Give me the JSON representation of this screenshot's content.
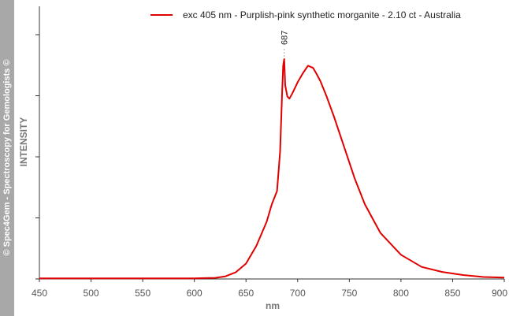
{
  "watermark": "© Spec4Gem - Spectroscopy for Gemologists ©",
  "chart_data": {
    "type": "line",
    "title": "",
    "xlabel": "nm",
    "ylabel": "INTENSITY",
    "xlim": [
      450,
      900
    ],
    "ylim": [
      0,
      100
    ],
    "xticks": [
      450,
      500,
      550,
      600,
      650,
      700,
      750,
      800,
      850,
      900
    ],
    "grid": false,
    "legend_position": "top-right",
    "annotations": [
      {
        "x": 687,
        "text": "687"
      }
    ],
    "series": [
      {
        "name": "exc 405 nm - Purplish-pink synthetic morganite - 2.10 ct - Australia",
        "color": "#e00000",
        "x": [
          450,
          500,
          550,
          600,
          620,
          630,
          640,
          650,
          660,
          670,
          675,
          680,
          683,
          685,
          686,
          687,
          688,
          690,
          692,
          695,
          700,
          705,
          710,
          715,
          718,
          722,
          728,
          735,
          745,
          755,
          765,
          780,
          800,
          820,
          840,
          860,
          880,
          900
        ],
        "y": [
          0.3,
          0.3,
          0.3,
          0.3,
          0.5,
          1.2,
          3.0,
          7.0,
          15,
          26,
          34,
          40,
          58,
          85,
          97,
          100,
          88,
          83,
          82,
          84.5,
          89.5,
          93.5,
          97.0,
          96.0,
          93.5,
          90,
          83,
          74,
          60,
          46,
          34,
          21,
          11,
          5.5,
          3.2,
          1.8,
          0.9,
          0.6
        ]
      }
    ]
  }
}
